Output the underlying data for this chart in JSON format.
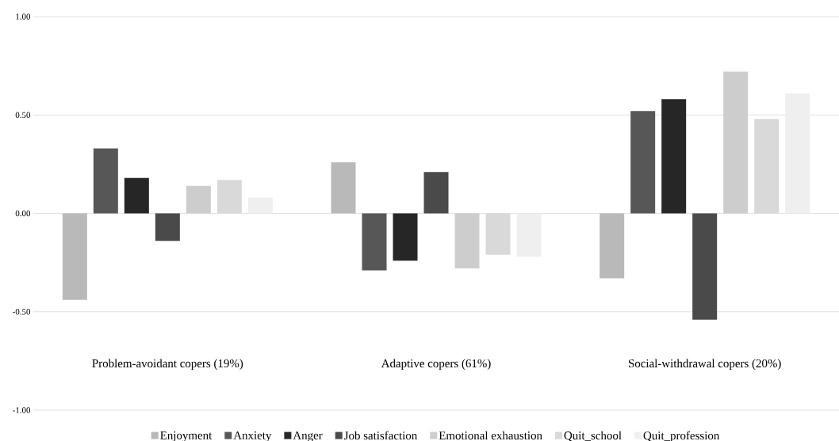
{
  "chart_data": {
    "type": "bar",
    "categories": [
      "Problem-avoidant copers (19%)",
      "Adaptive copers (61%)",
      "Social-withdrawal copers (20%)"
    ],
    "series": [
      {
        "name": "Enjoyment",
        "color": "#b9b9b9",
        "values": [
          -0.44,
          0.26,
          -0.33
        ]
      },
      {
        "name": "Anxiety",
        "color": "#575757",
        "values": [
          0.33,
          -0.29,
          0.52
        ]
      },
      {
        "name": "Anger",
        "color": "#262626",
        "values": [
          0.18,
          -0.24,
          0.58
        ]
      },
      {
        "name": "Job satisfaction",
        "color": "#4a4a4a",
        "values": [
          -0.14,
          0.21,
          -0.54
        ]
      },
      {
        "name": "Emotional exhaustion",
        "color": "#cdcdcd",
        "values": [
          0.14,
          -0.28,
          0.72
        ]
      },
      {
        "name": "Quit_school",
        "color": "#d9d9d9",
        "values": [
          0.17,
          -0.21,
          0.48
        ]
      },
      {
        "name": "Quit_profession",
        "color": "#efefef",
        "values": [
          0.08,
          -0.22,
          0.61
        ]
      }
    ],
    "ylim": [
      -1,
      1
    ],
    "yticks": [
      {
        "value": -1,
        "label": "-1.00"
      },
      {
        "value": -0.5,
        "label": "-0.50"
      },
      {
        "value": 0,
        "label": "0.00"
      },
      {
        "value": 0.5,
        "label": "0.50"
      },
      {
        "value": 1,
        "label": "1.00"
      }
    ],
    "grid": "y",
    "legend": "bottom"
  }
}
